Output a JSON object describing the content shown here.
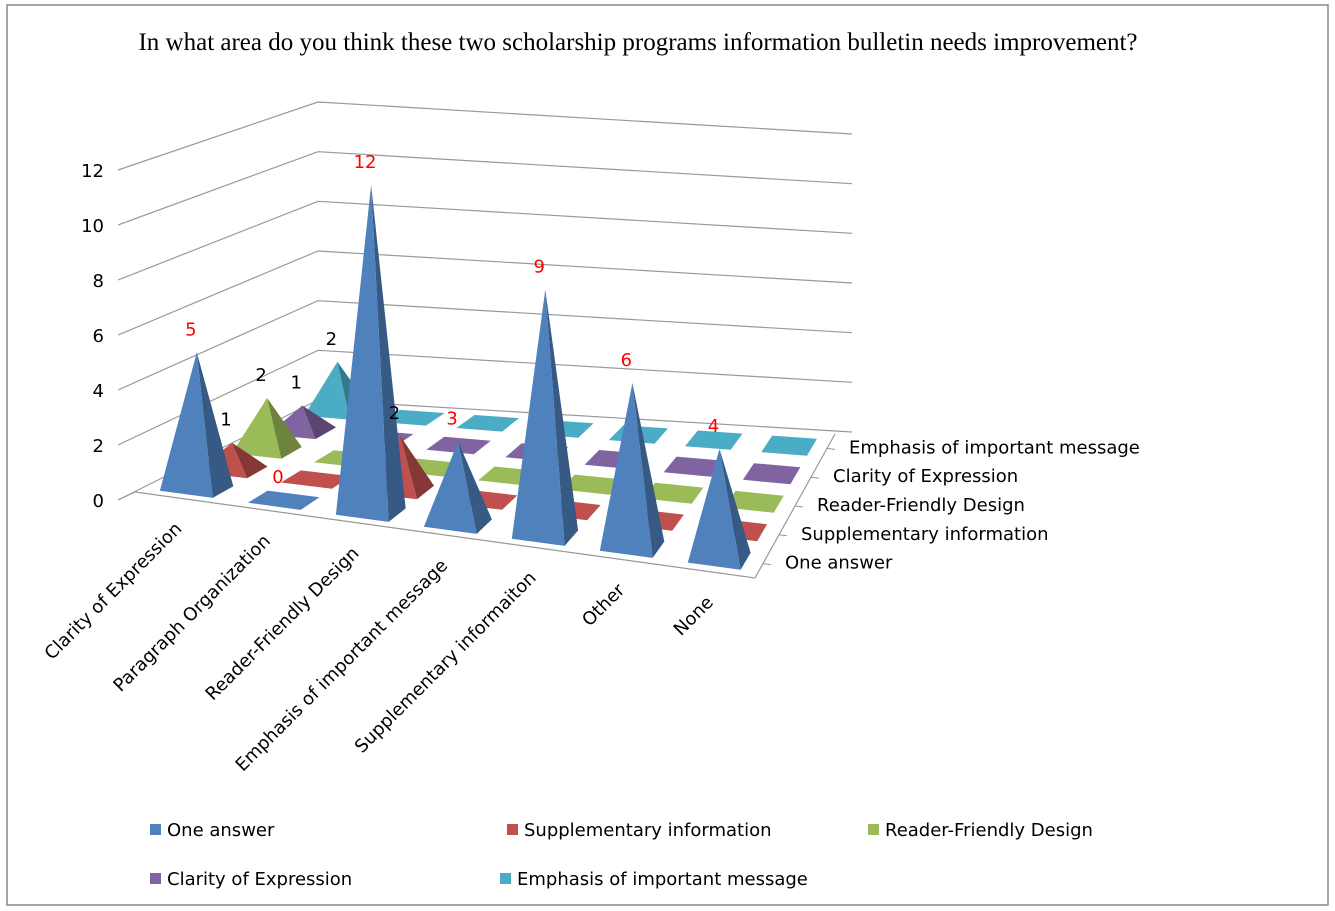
{
  "chart_data": {
    "type": "pyramid3d",
    "title": "In what area do you think these two scholarship programs information bulletin needs improvement?",
    "categories": [
      "Clarity of Expression",
      "Paragraph Organization",
      "Reader-Friendly Design",
      "Emphasis of important message",
      "Supplementary informaiton",
      "Other",
      "None"
    ],
    "series": [
      {
        "name": "One answer",
        "color": "#4f81bd",
        "label_color": "#ff0000",
        "zero_label": true,
        "values": [
          5,
          0,
          12,
          3,
          9,
          6,
          4
        ]
      },
      {
        "name": "Supplementary information",
        "color": "#c0504d",
        "label_color": "#000000",
        "zero_label": false,
        "values": [
          1,
          0,
          2,
          0,
          0,
          0,
          0
        ]
      },
      {
        "name": "Reader-Friendly Design",
        "color": "#9bbb59",
        "label_color": "#000000",
        "zero_label": false,
        "values": [
          2,
          0,
          0,
          0,
          0,
          0,
          0
        ]
      },
      {
        "name": "Clarity of Expression",
        "color": "#8064a2",
        "label_color": "#000000",
        "zero_label": false,
        "values": [
          1,
          0,
          0,
          0,
          0,
          0,
          0
        ]
      },
      {
        "name": "Emphasis of important message",
        "color": "#4bacc6",
        "label_color": "#000000",
        "zero_label": false,
        "values": [
          2,
          0,
          0,
          0,
          0,
          0,
          0
        ]
      }
    ],
    "ylim": [
      0,
      12
    ],
    "yticks": [
      0,
      2,
      4,
      6,
      8,
      10,
      12
    ],
    "grid": true,
    "legend": "bottom"
  }
}
